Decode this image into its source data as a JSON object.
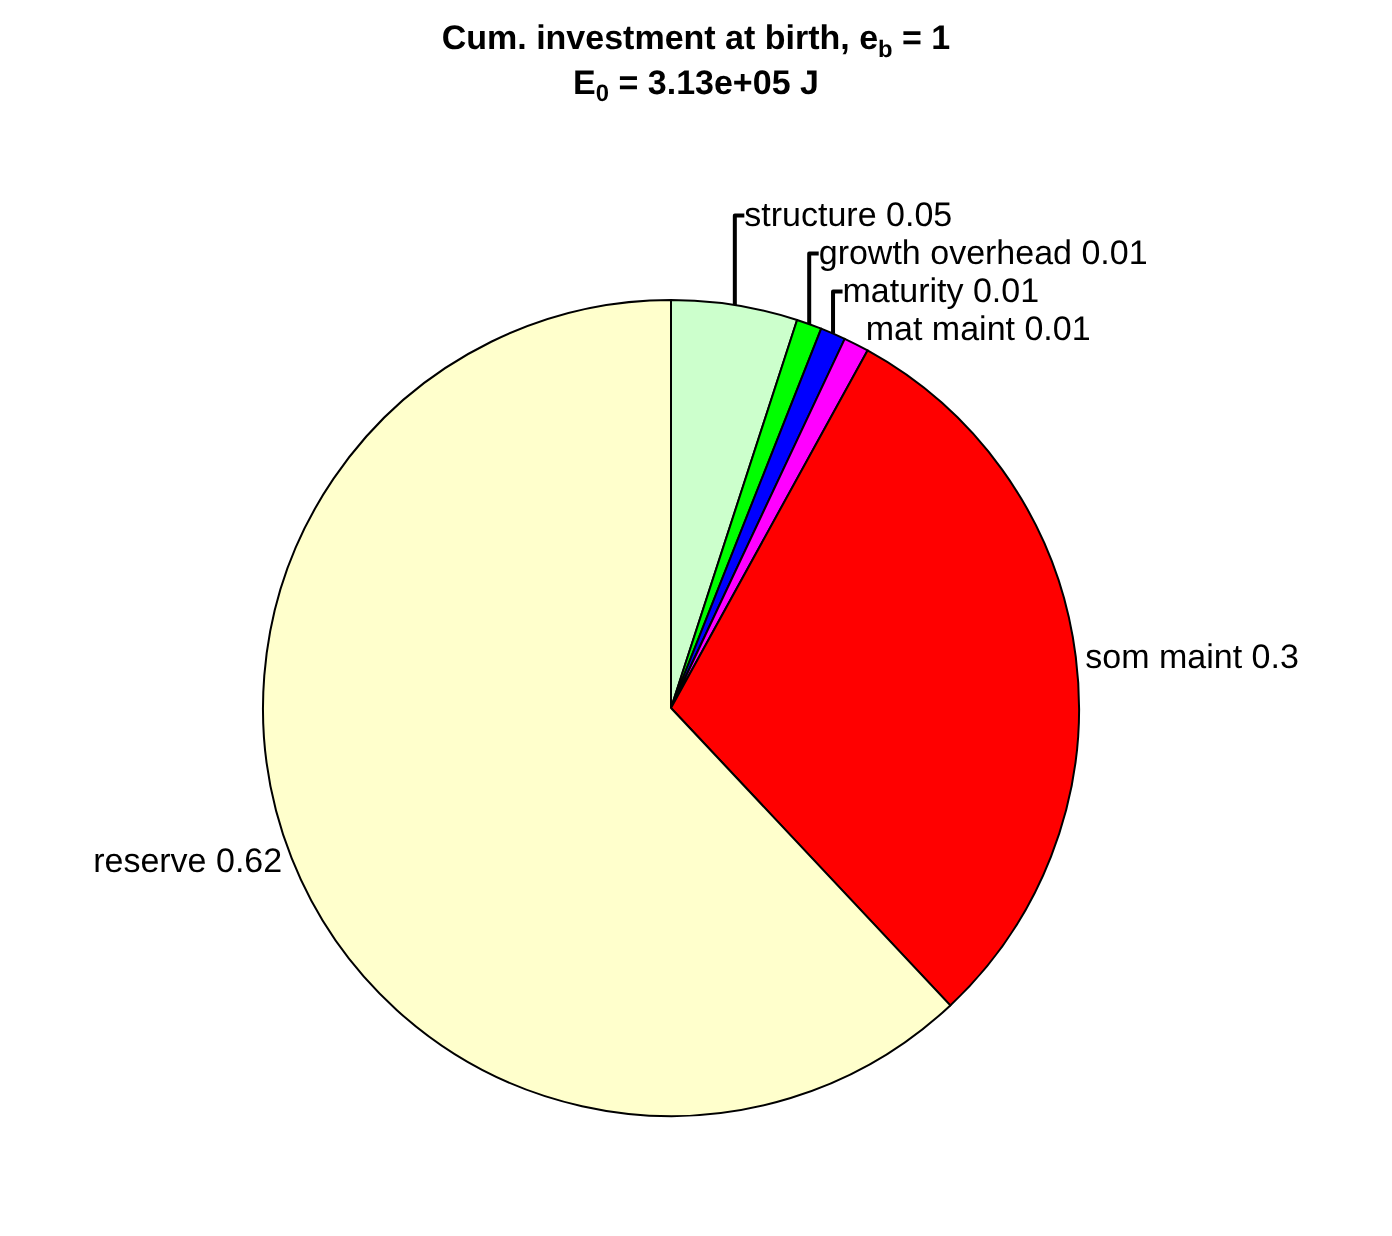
{
  "chart_data": {
    "type": "pie",
    "title": "Cum. investment at birth, e$_{b}$ = 1",
    "subtitle": "E$_{0}$ = 3.13e+05 J",
    "categories": [
      "structure 0.05",
      "growth overhead 0.01",
      "maturity 0.01",
      "mat maint 0.01",
      "som maint 0.3",
      "reserve 0.62"
    ],
    "values": [
      0.05,
      0.01,
      0.01,
      0.01,
      0.3,
      0.62
    ],
    "colors": [
      "#ccffcc",
      "#00ff00",
      "#0000ff",
      "#ff00ff",
      "#ff0000",
      "#ffffcc"
    ],
    "legend": false
  }
}
